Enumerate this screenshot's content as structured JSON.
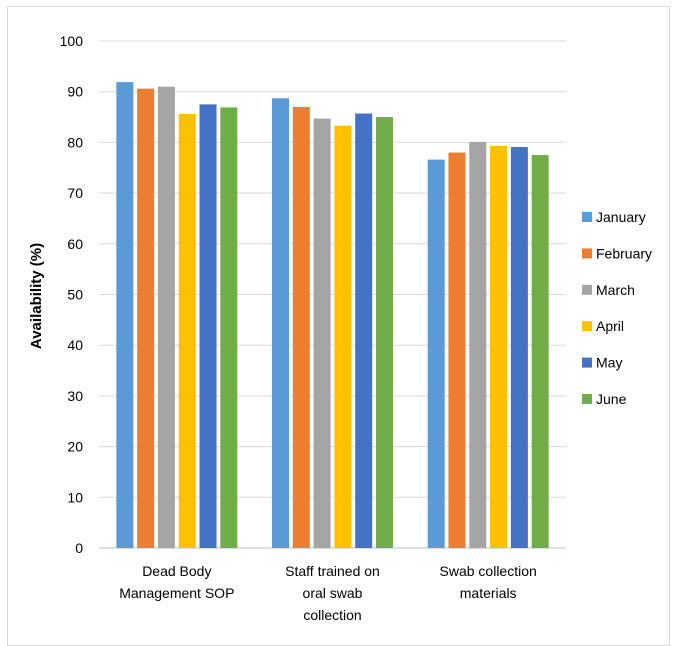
{
  "top_caption": "",
  "chart_data": {
    "type": "bar",
    "title": "",
    "xlabel": "",
    "ylabel": "Availability (%)",
    "ylim": [
      0,
      100
    ],
    "yticks": [
      0,
      10,
      20,
      30,
      40,
      50,
      60,
      70,
      80,
      90,
      100
    ],
    "grid": true,
    "legend_position": "right",
    "categories": [
      [
        "Dead Body",
        "Management SOP"
      ],
      [
        "Staff trained on",
        "oral swab",
        "collection"
      ],
      [
        "Swab collection",
        "materials"
      ]
    ],
    "series": [
      {
        "name": "January",
        "color": "#5b9bd5",
        "values": [
          91.9,
          88.7,
          76.6
        ]
      },
      {
        "name": "February",
        "color": "#ed7d31",
        "values": [
          90.6,
          87.0,
          78.0
        ]
      },
      {
        "name": "March",
        "color": "#a5a5a5",
        "values": [
          91.0,
          84.7,
          80.1
        ]
      },
      {
        "name": "April",
        "color": "#ffc000",
        "values": [
          85.6,
          83.3,
          79.3
        ]
      },
      {
        "name": "May",
        "color": "#4472c4",
        "values": [
          87.5,
          85.7,
          79.1
        ]
      },
      {
        "name": "June",
        "color": "#70ad47",
        "values": [
          86.9,
          85.0,
          77.5
        ]
      }
    ]
  }
}
